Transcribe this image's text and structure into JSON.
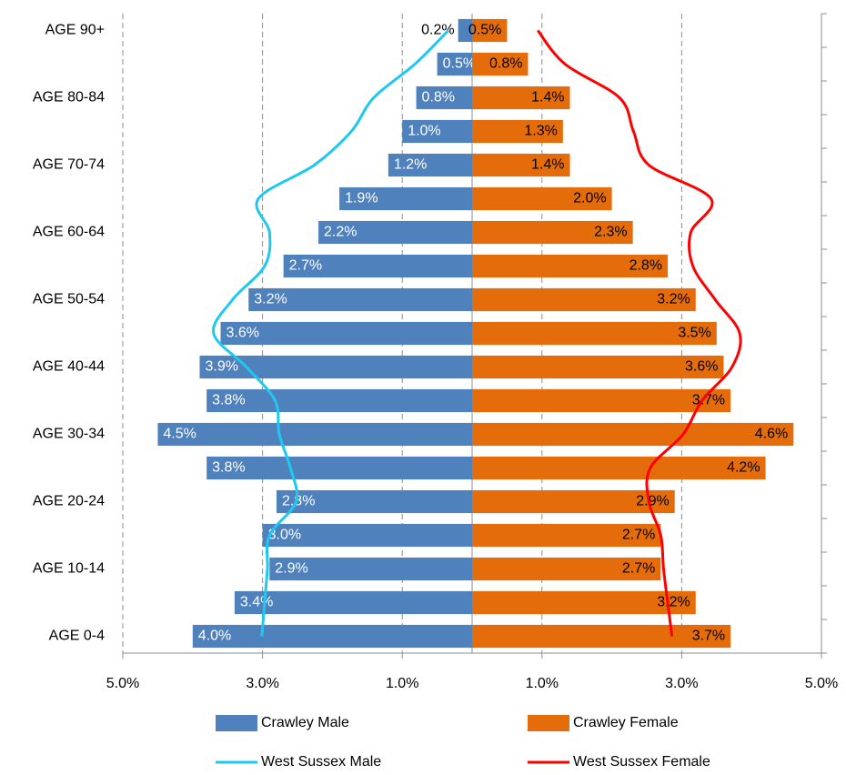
{
  "chart_data": {
    "type": "bar",
    "orientation": "horizontal",
    "categories": [
      "AGE 0-4",
      null,
      "AGE 10-14",
      null,
      "AGE 20-24",
      null,
      "AGE 30-34",
      null,
      "AGE 40-44",
      null,
      "AGE 50-54",
      null,
      "AGE 60-64",
      null,
      "AGE 70-74",
      null,
      "AGE 80-84",
      null,
      "AGE 90+"
    ],
    "xlim": [
      -5,
      5
    ],
    "xticks": [
      {
        "value": -5,
        "label": "5.0%"
      },
      {
        "value": -3,
        "label": "3.0%"
      },
      {
        "value": -1,
        "label": "1.0%"
      },
      {
        "value": 1,
        "label": "1.0%"
      },
      {
        "value": 3,
        "label": "3.0%"
      },
      {
        "value": 5,
        "label": "5.0%"
      }
    ],
    "grid": true,
    "legend": "bottom",
    "series": [
      {
        "name": "Crawley Male",
        "type": "bar",
        "color": "#4f81bd",
        "values": [
          -4.0,
          -3.4,
          -2.9,
          -3.0,
          -2.8,
          -3.8,
          -4.5,
          -3.8,
          -3.9,
          -3.6,
          -3.2,
          -2.7,
          -2.2,
          -1.9,
          -1.2,
          -1.0,
          -0.8,
          -0.5,
          -0.2
        ],
        "value_labels": [
          "4.0%",
          "3.4%",
          "2.9%",
          "3.0%",
          "2.8%",
          "3.8%",
          "4.5%",
          "3.8%",
          "3.9%",
          "3.6%",
          "3.2%",
          "2.7%",
          "2.2%",
          "1.9%",
          "1.2%",
          "1.0%",
          "0.8%",
          "0.5%",
          "0.2%"
        ]
      },
      {
        "name": "Crawley Female",
        "type": "bar",
        "color": "#e46c0a",
        "values": [
          3.7,
          3.2,
          2.7,
          2.7,
          2.9,
          4.2,
          4.6,
          3.7,
          3.6,
          3.5,
          3.2,
          2.8,
          2.3,
          2.0,
          1.4,
          1.3,
          1.4,
          0.8,
          0.5
        ],
        "value_labels": [
          "3.7%",
          "3.2%",
          "2.7%",
          "2.7%",
          "2.9%",
          "4.2%",
          "4.6%",
          "3.7%",
          "3.6%",
          "3.5%",
          "3.2%",
          "2.8%",
          "2.3%",
          "2.0%",
          "1.4%",
          "1.3%",
          "1.4%",
          "0.8%",
          "0.5%"
        ]
      },
      {
        "name": "West Sussex Male",
        "type": "line",
        "color": "#1ec8f0",
        "values": [
          -3.01,
          -2.97,
          -2.93,
          -2.9,
          -2.52,
          -2.6,
          -2.76,
          -2.82,
          -3.23,
          -3.7,
          -3.43,
          -2.97,
          -2.9,
          -3.06,
          -2.26,
          -1.73,
          -1.41,
          -0.82,
          -0.34
        ]
      },
      {
        "name": "West Sussex Female",
        "type": "line",
        "color": "#ff0000",
        "values": [
          2.86,
          2.8,
          2.74,
          2.7,
          2.53,
          2.55,
          3.02,
          3.29,
          3.72,
          3.83,
          3.48,
          3.16,
          3.13,
          3.42,
          2.53,
          2.31,
          2.11,
          1.33,
          0.94
        ]
      }
    ]
  }
}
